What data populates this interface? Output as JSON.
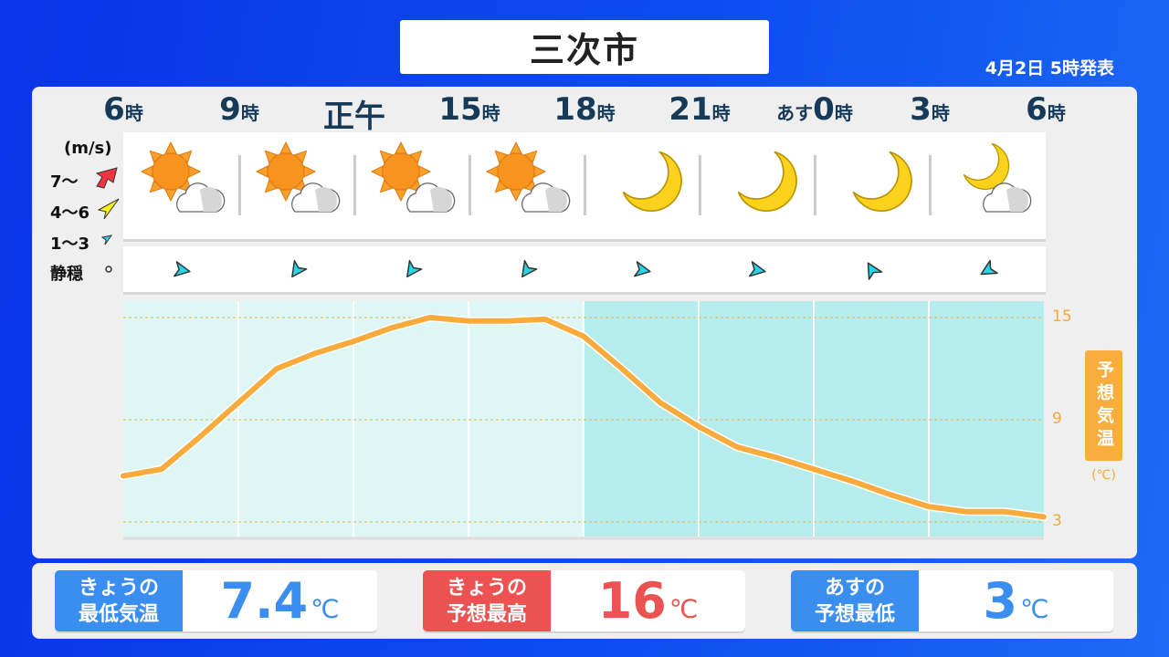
{
  "title": "三次市",
  "issued": "4月2日 5時発表",
  "times": [
    {
      "pre": "",
      "main": "6",
      "suf": "時"
    },
    {
      "pre": "",
      "main": "9",
      "suf": "時"
    },
    {
      "pre": "",
      "main": "正午",
      "suf": ""
    },
    {
      "pre": "",
      "main": "15",
      "suf": "時"
    },
    {
      "pre": "",
      "main": "18",
      "suf": "時"
    },
    {
      "pre": "",
      "main": "21",
      "suf": "時"
    },
    {
      "pre": "あす",
      "main": "0",
      "suf": "時"
    },
    {
      "pre": "",
      "main": "3",
      "suf": "時"
    },
    {
      "pre": "",
      "main": "6",
      "suf": "時"
    }
  ],
  "wind_legend": {
    "unit": "(m/s)",
    "items": [
      {
        "label": "7〜",
        "color": "#f0353f"
      },
      {
        "label": "4〜6",
        "color": "#f7f21c"
      },
      {
        "label": "1〜3",
        "color": "#26d6e6"
      },
      {
        "label": "静穏",
        "symbol": "circle"
      }
    ]
  },
  "weather_icons": [
    "sun-cloud",
    "sun-cloud",
    "sun-cloud",
    "sun-cloud",
    "moon",
    "moon",
    "moon",
    "moon-cloud"
  ],
  "wind": [
    {
      "speed": "1〜3",
      "direction_deg": 100
    },
    {
      "speed": "1〜3",
      "direction_deg": 215
    },
    {
      "speed": "1〜3",
      "direction_deg": 215
    },
    {
      "speed": "1〜3",
      "direction_deg": 215
    },
    {
      "speed": "1〜3",
      "direction_deg": 100
    },
    {
      "speed": "1〜3",
      "direction_deg": 100
    },
    {
      "speed": "1〜3",
      "direction_deg": 330
    },
    {
      "speed": "1〜3",
      "direction_deg": 240
    }
  ],
  "chart_data": {
    "type": "line",
    "x_hours": [
      6,
      7,
      8,
      9,
      10,
      11,
      12,
      13,
      14,
      15,
      16,
      17,
      18,
      19,
      20,
      21,
      22,
      23,
      24,
      25,
      26,
      27,
      28,
      29,
      30
    ],
    "values": [
      5.7,
      6.1,
      8.0,
      10.0,
      12.0,
      12.9,
      13.6,
      14.4,
      15.0,
      14.8,
      14.8,
      14.9,
      13.9,
      12.0,
      10.0,
      8.6,
      7.4,
      6.8,
      6.1,
      5.4,
      4.6,
      3.9,
      3.6,
      3.6,
      3.3
    ],
    "ylabel": "予想気温",
    "yunit": "(℃)",
    "yticks": [
      "15",
      "9",
      "3"
    ],
    "ylim": [
      2,
      16
    ],
    "night_from_hour": 18,
    "line_color": "#f8ab3c"
  },
  "summary": [
    {
      "label1": "きょうの",
      "label2": "最低気温",
      "value": "7.4",
      "unit": "℃",
      "color": "#3a8ef0"
    },
    {
      "label1": "きょうの",
      "label2": "予想最高",
      "value": "16",
      "unit": "℃",
      "color": "#ec5252"
    },
    {
      "label1": "あすの",
      "label2": "予想最低",
      "value": "3",
      "unit": "℃",
      "color": "#3a8ef0"
    }
  ]
}
